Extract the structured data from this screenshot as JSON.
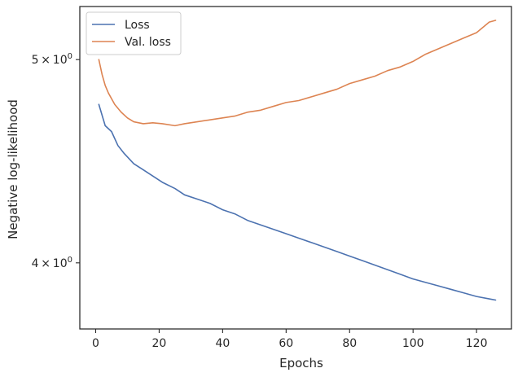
{
  "chart_data": {
    "type": "line",
    "title": "",
    "xlabel": "Epochs",
    "ylabel": "Negative log-likelihood",
    "xlim": [
      -5,
      131
    ],
    "ylim": [
      3.72,
      5.3
    ],
    "yscale": "log",
    "grid": false,
    "legend_position": "top-left",
    "x_ticks": [
      0,
      20,
      40,
      60,
      80,
      100,
      120
    ],
    "x_tick_labels": [
      "0",
      "20",
      "40",
      "60",
      "80",
      "100",
      "120"
    ],
    "y_ticks": [
      4.0,
      5.0
    ],
    "y_tick_labels": [
      {
        "base": "4",
        "exp": "0"
      },
      {
        "base": "5",
        "exp": "0"
      }
    ],
    "series": [
      {
        "name": "Loss",
        "color": "#4c72b0",
        "points": [
          [
            1,
            4.76
          ],
          [
            3,
            4.65
          ],
          [
            5,
            4.62
          ],
          [
            7,
            4.55
          ],
          [
            9,
            4.51
          ],
          [
            12,
            4.46
          ],
          [
            15,
            4.43
          ],
          [
            18,
            4.4
          ],
          [
            21,
            4.37
          ],
          [
            25,
            4.34
          ],
          [
            28,
            4.31
          ],
          [
            32,
            4.29
          ],
          [
            36,
            4.27
          ],
          [
            40,
            4.24
          ],
          [
            44,
            4.22
          ],
          [
            48,
            4.19
          ],
          [
            52,
            4.17
          ],
          [
            56,
            4.15
          ],
          [
            60,
            4.13
          ],
          [
            64,
            4.11
          ],
          [
            68,
            4.09
          ],
          [
            72,
            4.07
          ],
          [
            76,
            4.05
          ],
          [
            80,
            4.03
          ],
          [
            84,
            4.01
          ],
          [
            88,
            3.99
          ],
          [
            92,
            3.97
          ],
          [
            96,
            3.95
          ],
          [
            100,
            3.93
          ],
          [
            104,
            3.915
          ],
          [
            108,
            3.9
          ],
          [
            112,
            3.885
          ],
          [
            116,
            3.87
          ],
          [
            120,
            3.855
          ],
          [
            124,
            3.845
          ],
          [
            126,
            3.84
          ]
        ]
      },
      {
        "name": "Val. loss",
        "color": "#dd8452",
        "points": [
          [
            1,
            5.0
          ],
          [
            2,
            4.92
          ],
          [
            3,
            4.86
          ],
          [
            4,
            4.82
          ],
          [
            6,
            4.76
          ],
          [
            8,
            4.72
          ],
          [
            10,
            4.69
          ],
          [
            12,
            4.67
          ],
          [
            15,
            4.66
          ],
          [
            18,
            4.665
          ],
          [
            21,
            4.66
          ],
          [
            25,
            4.65
          ],
          [
            28,
            4.66
          ],
          [
            32,
            4.67
          ],
          [
            36,
            4.68
          ],
          [
            40,
            4.69
          ],
          [
            44,
            4.7
          ],
          [
            48,
            4.72
          ],
          [
            52,
            4.73
          ],
          [
            56,
            4.75
          ],
          [
            60,
            4.77
          ],
          [
            64,
            4.78
          ],
          [
            68,
            4.8
          ],
          [
            72,
            4.82
          ],
          [
            76,
            4.84
          ],
          [
            80,
            4.87
          ],
          [
            84,
            4.89
          ],
          [
            88,
            4.91
          ],
          [
            92,
            4.94
          ],
          [
            96,
            4.96
          ],
          [
            100,
            4.99
          ],
          [
            104,
            5.03
          ],
          [
            108,
            5.06
          ],
          [
            112,
            5.09
          ],
          [
            116,
            5.12
          ],
          [
            120,
            5.15
          ],
          [
            124,
            5.21
          ],
          [
            126,
            5.22
          ]
        ]
      }
    ]
  }
}
